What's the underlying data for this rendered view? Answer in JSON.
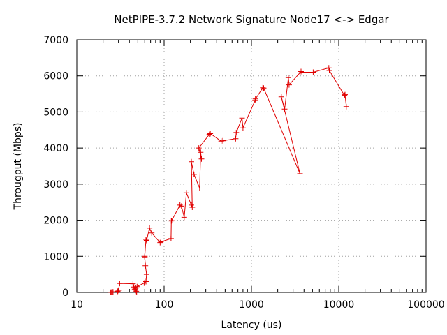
{
  "chart_data": {
    "type": "line",
    "title": "NetPIPE-3.7.2 Network Signature Node17 <-> Edgar",
    "xlabel": "Latency (us)",
    "ylabel": "Througput (Mbps)",
    "x_scale": "log",
    "xlim": [
      10,
      100000
    ],
    "ylim": [
      0,
      7000
    ],
    "xticks": [
      "10",
      "100",
      "1000",
      "10000",
      "100000"
    ],
    "yticks": [
      "0",
      "1000",
      "2000",
      "3000",
      "4000",
      "5000",
      "6000",
      "7000"
    ],
    "grid": true,
    "legend": "none",
    "series": [
      {
        "color": "#e00000",
        "marker": "plus",
        "points": [
          [
            24.5,
            5
          ],
          [
            25,
            8
          ],
          [
            25.5,
            12
          ],
          [
            26,
            15
          ],
          [
            29,
            20
          ],
          [
            29.5,
            35
          ],
          [
            30,
            60
          ],
          [
            31,
            250
          ],
          [
            44,
            240
          ],
          [
            45,
            150
          ],
          [
            46,
            90
          ],
          [
            47,
            60
          ],
          [
            48,
            30
          ],
          [
            48.5,
            10
          ],
          [
            47.5,
            120
          ],
          [
            49,
            160
          ],
          [
            59,
            260
          ],
          [
            62,
            300
          ],
          [
            63,
            500
          ],
          [
            61,
            740
          ],
          [
            60,
            980
          ],
          [
            60,
            1000
          ],
          [
            62,
            1470
          ],
          [
            63,
            1440
          ],
          [
            68,
            1780
          ],
          [
            72,
            1650
          ],
          [
            90,
            1380
          ],
          [
            92,
            1400
          ],
          [
            120,
            1490
          ],
          [
            121,
            1980
          ],
          [
            122,
            1990
          ],
          [
            152,
            2420
          ],
          [
            158,
            2390
          ],
          [
            170,
            2080
          ],
          [
            180,
            2760
          ],
          [
            205,
            2420
          ],
          [
            210,
            2360
          ],
          [
            205,
            3620
          ],
          [
            220,
            3270
          ],
          [
            255,
            2890
          ],
          [
            262,
            3880
          ],
          [
            268,
            3700
          ],
          [
            250,
            4000
          ],
          [
            330,
            4380
          ],
          [
            338,
            4400
          ],
          [
            450,
            4190
          ],
          [
            470,
            4200
          ],
          [
            660,
            4260
          ],
          [
            670,
            4430
          ],
          [
            780,
            4830
          ],
          [
            800,
            4560
          ],
          [
            1100,
            5320
          ],
          [
            1110,
            5360
          ],
          [
            1350,
            5670
          ],
          [
            1380,
            5660
          ],
          [
            3600,
            3290
          ],
          [
            2200,
            5420
          ],
          [
            2400,
            5080
          ],
          [
            2650,
            5950
          ],
          [
            2700,
            5750
          ],
          [
            3700,
            6120
          ],
          [
            3800,
            6100
          ],
          [
            5100,
            6100
          ],
          [
            7700,
            6220
          ],
          [
            7800,
            6150
          ],
          [
            11600,
            5460
          ],
          [
            11800,
            5480
          ],
          [
            12200,
            5150
          ]
        ]
      }
    ]
  }
}
